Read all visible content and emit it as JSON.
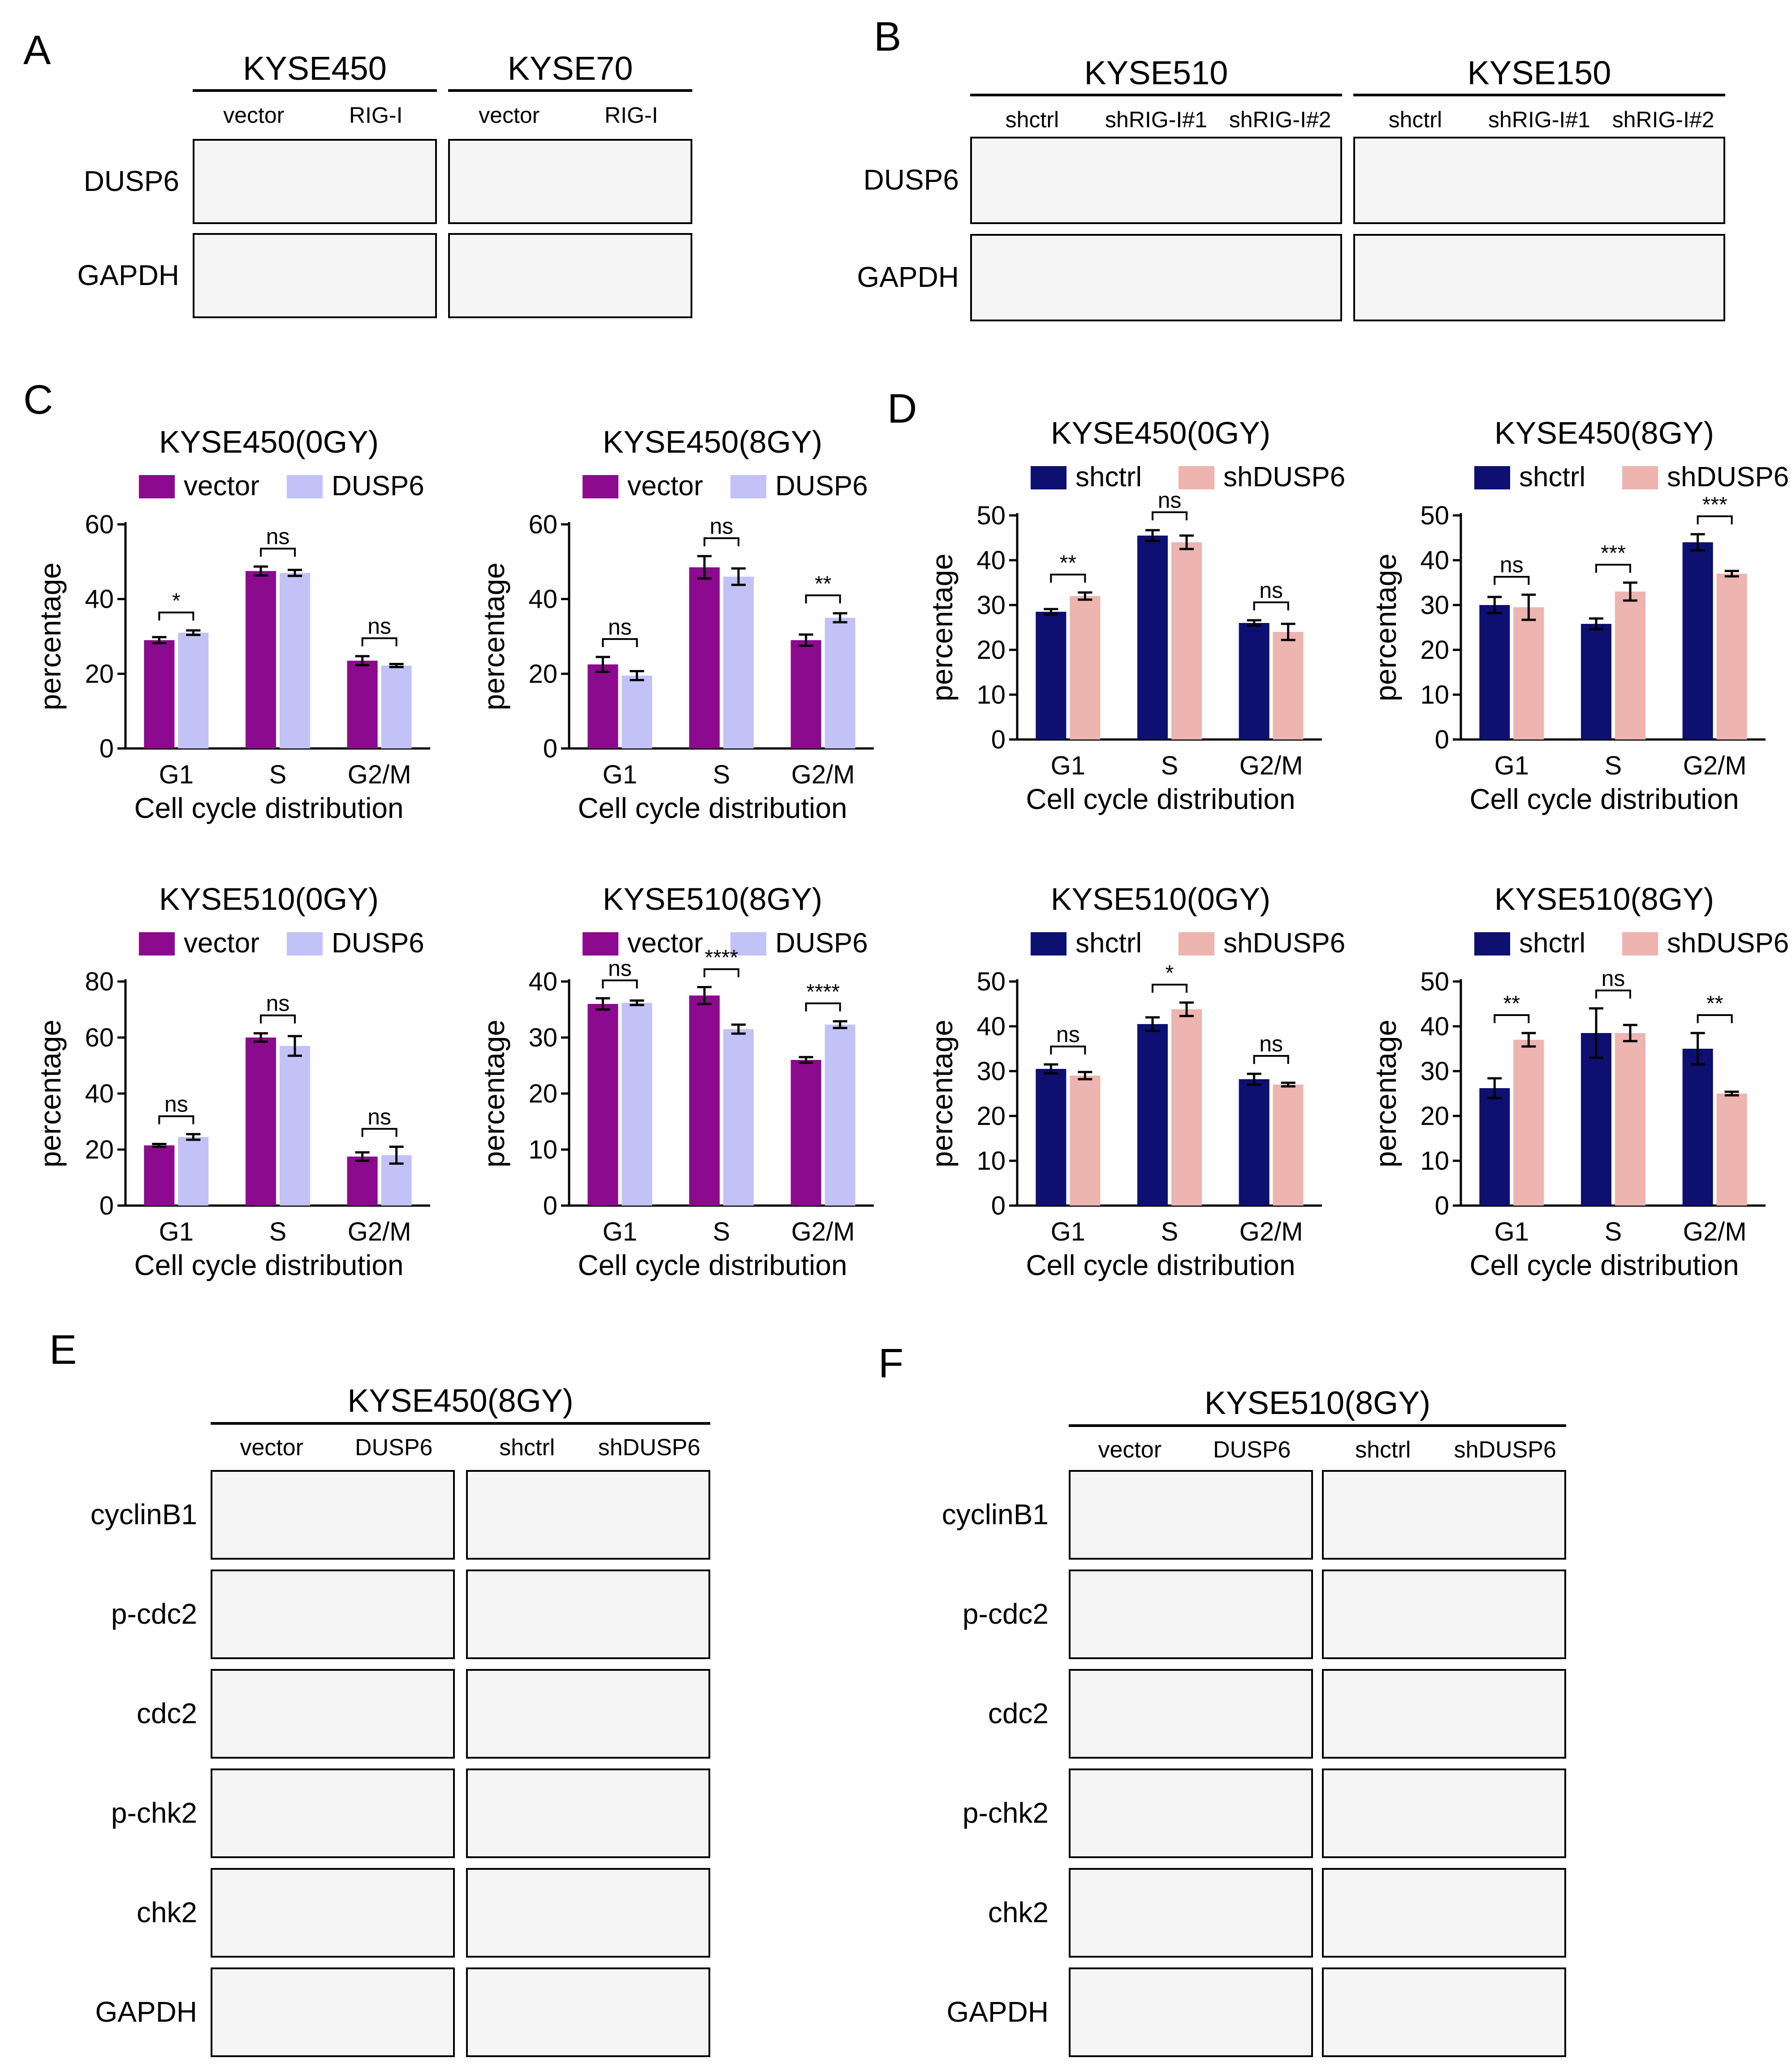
{
  "panel_letters": [
    "A",
    "B",
    "C",
    "D",
    "E",
    "F"
  ],
  "blot_A": {
    "cell_lines": [
      "KYSE450",
      "KYSE70"
    ],
    "lanes": [
      [
        "vector",
        "RIG-I"
      ],
      [
        "vector",
        "RIG-I"
      ]
    ],
    "rows": [
      "DUSP6",
      "GAPDH"
    ]
  },
  "blot_B": {
    "cell_lines": [
      "KYSE510",
      "KYSE150"
    ],
    "lanes": [
      [
        "shctrl",
        "shRIG-I#1",
        "shRIG-I#2"
      ],
      [
        "shctrl",
        "shRIG-I#1",
        "shRIG-I#2"
      ]
    ],
    "rows": [
      "DUSP6",
      "GAPDH"
    ]
  },
  "blot_E": {
    "title": "KYSE450(8GY)",
    "lanes": [
      [
        "vector",
        "DUSP6"
      ],
      [
        "shctrl",
        "shDUSP6"
      ]
    ],
    "rows": [
      "cyclinB1",
      "p-cdc2",
      "cdc2",
      "p-chk2",
      "chk2",
      "GAPDH"
    ]
  },
  "blot_F": {
    "title": "KYSE510(8GY)",
    "lanes": [
      [
        "vector",
        "DUSP6"
      ],
      [
        "shctrl",
        "shDUSP6"
      ]
    ],
    "rows": [
      "cyclinB1",
      "p-cdc2",
      "cdc2",
      "p-chk2",
      "chk2",
      "GAPDH"
    ]
  },
  "colors": {
    "vector": "#8B0A8E",
    "DUSP6": "#C2C2F7",
    "shctrl": "#0D1070",
    "shDUSP6": "#EDB4B0"
  },
  "chart_data": [
    {
      "type": "bar",
      "title": "KYSE450(0GY)",
      "xlabel": "Cell cycle distribution",
      "ylabel": "percentage",
      "categories": [
        "G1",
        "S",
        "G2/M"
      ],
      "ylim": [
        0,
        60
      ],
      "yticks": [
        0,
        20,
        40,
        60
      ],
      "series": [
        {
          "name": "vector",
          "values": [
            29,
            47.5,
            23.5
          ],
          "err": [
            0.8,
            1.2,
            1.2
          ]
        },
        {
          "name": "DUSP6",
          "values": [
            31,
            47,
            22.2
          ],
          "err": [
            0.6,
            0.8,
            0.4
          ]
        }
      ],
      "sig": [
        "*",
        "ns",
        "ns"
      ]
    },
    {
      "type": "bar",
      "title": "KYSE450(8GY)",
      "xlabel": "Cell cycle distribution",
      "ylabel": "percentage",
      "categories": [
        "G1",
        "S",
        "G2/M"
      ],
      "ylim": [
        0,
        60
      ],
      "yticks": [
        0,
        20,
        40,
        60
      ],
      "series": [
        {
          "name": "vector",
          "values": [
            22.5,
            48.5,
            29
          ],
          "err": [
            2,
            3,
            1.5
          ]
        },
        {
          "name": "DUSP6",
          "values": [
            19.5,
            46,
            35
          ],
          "err": [
            1.2,
            2.2,
            1.2
          ]
        }
      ],
      "sig": [
        "ns",
        "ns",
        "**"
      ]
    },
    {
      "type": "bar",
      "title": "KYSE450(0GY)",
      "xlabel": "Cell cycle distribution",
      "ylabel": "percentage",
      "categories": [
        "G1",
        "S",
        "G2/M"
      ],
      "ylim": [
        0,
        50
      ],
      "yticks": [
        0,
        10,
        20,
        30,
        40,
        50
      ],
      "series": [
        {
          "name": "shctrl",
          "values": [
            28.5,
            45.5,
            26
          ],
          "err": [
            0.6,
            1.2,
            0.6
          ]
        },
        {
          "name": "shDUSP6",
          "values": [
            32,
            44,
            24
          ],
          "err": [
            0.8,
            1.5,
            1.8
          ]
        }
      ],
      "sig": [
        "**",
        "ns",
        "ns"
      ]
    },
    {
      "type": "bar",
      "title": "KYSE450(8GY)",
      "xlabel": "Cell cycle distribution",
      "ylabel": "percentage",
      "categories": [
        "G1",
        "S",
        "G2/M"
      ],
      "ylim": [
        0,
        50
      ],
      "yticks": [
        0,
        10,
        20,
        30,
        40,
        50
      ],
      "series": [
        {
          "name": "shctrl",
          "values": [
            30,
            25.8,
            44
          ],
          "err": [
            1.8,
            1.2,
            1.8
          ]
        },
        {
          "name": "shDUSP6",
          "values": [
            29.5,
            33,
            37
          ],
          "err": [
            2.8,
            2,
            0.6
          ]
        }
      ],
      "sig": [
        "ns",
        "***",
        "***"
      ]
    },
    {
      "type": "bar",
      "title": "KYSE510(0GY)",
      "xlabel": "Cell cycle distribution",
      "ylabel": "percentage",
      "categories": [
        "G1",
        "S",
        "G2/M"
      ],
      "ylim": [
        0,
        80
      ],
      "yticks": [
        0,
        20,
        40,
        60,
        80
      ],
      "series": [
        {
          "name": "vector",
          "values": [
            21.5,
            60,
            17.5
          ],
          "err": [
            0.5,
            1.5,
            1.5
          ]
        },
        {
          "name": "DUSP6",
          "values": [
            24.5,
            57,
            18
          ],
          "err": [
            1,
            3.5,
            3
          ]
        }
      ],
      "sig": [
        "ns",
        "ns",
        "ns"
      ]
    },
    {
      "type": "bar",
      "title": "KYSE510(8GY)",
      "xlabel": "Cell cycle distribution",
      "ylabel": "percentage",
      "categories": [
        "G1",
        "S",
        "G2/M"
      ],
      "ylim": [
        0,
        40
      ],
      "yticks": [
        0,
        10,
        20,
        30,
        40
      ],
      "series": [
        {
          "name": "vector",
          "values": [
            36,
            37.5,
            26
          ],
          "err": [
            1,
            1.5,
            0.5
          ]
        },
        {
          "name": "DUSP6",
          "values": [
            36.2,
            31.5,
            32.3
          ],
          "err": [
            0.4,
            0.8,
            0.6
          ]
        }
      ],
      "sig": [
        "ns",
        "****",
        "****"
      ]
    },
    {
      "type": "bar",
      "title": "KYSE510(0GY)",
      "xlabel": "Cell cycle distribution",
      "ylabel": "percentage",
      "categories": [
        "G1",
        "S",
        "G2/M"
      ],
      "ylim": [
        0,
        50
      ],
      "yticks": [
        0,
        10,
        20,
        30,
        40,
        50
      ],
      "series": [
        {
          "name": "shctrl",
          "values": [
            30.5,
            40.5,
            28.2
          ],
          "err": [
            1,
            1.5,
            1.2
          ]
        },
        {
          "name": "shDUSP6",
          "values": [
            29,
            43.8,
            27
          ],
          "err": [
            0.8,
            1.5,
            0.4
          ]
        }
      ],
      "sig": [
        "ns",
        "*",
        "ns"
      ]
    },
    {
      "type": "bar",
      "title": "KYSE510(8GY)",
      "xlabel": "Cell cycle distribution",
      "ylabel": "percentage",
      "categories": [
        "G1",
        "S",
        "G2/M"
      ],
      "ylim": [
        0,
        50
      ],
      "yticks": [
        0,
        10,
        20,
        30,
        40,
        50
      ],
      "series": [
        {
          "name": "shctrl",
          "values": [
            26.2,
            38.5,
            35
          ],
          "err": [
            2.2,
            5.5,
            3.5
          ]
        },
        {
          "name": "shDUSP6",
          "values": [
            37,
            38.5,
            25
          ],
          "err": [
            1.5,
            1.8,
            0.4
          ]
        }
      ],
      "sig": [
        "**",
        "ns",
        "**"
      ]
    }
  ]
}
